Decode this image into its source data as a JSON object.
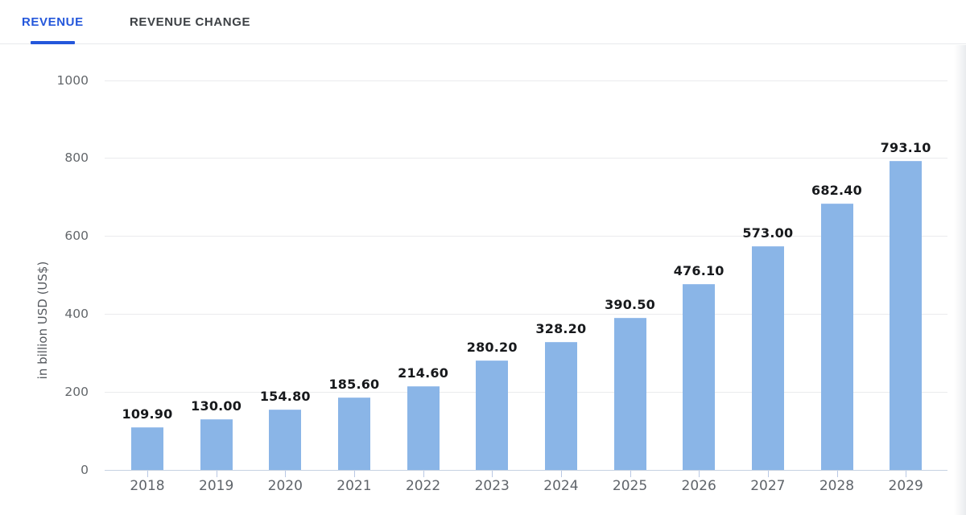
{
  "header": {
    "tabs": [
      {
        "id": "revenue",
        "label": "REVENUE",
        "active": true
      },
      {
        "id": "revenue-change",
        "label": "REVENUE CHANGE",
        "active": false
      }
    ]
  },
  "chart_data": {
    "type": "bar",
    "title": "",
    "ylabel": "in billion USD (US$)",
    "xlabel": "",
    "categories": [
      "2018",
      "2019",
      "2020",
      "2021",
      "2022",
      "2023",
      "2024",
      "2025",
      "2026",
      "2027",
      "2028",
      "2029"
    ],
    "values": [
      109.9,
      130.0,
      154.8,
      185.6,
      214.6,
      280.2,
      328.2,
      390.5,
      476.1,
      573.0,
      682.4,
      793.1
    ],
    "value_labels": [
      "109.90",
      "130.00",
      "154.80",
      "185.60",
      "214.60",
      "280.20",
      "328.20",
      "390.50",
      "476.10",
      "573.00",
      "682.40",
      "793.10"
    ],
    "ylim": [
      0,
      1000
    ],
    "yticks": [
      0,
      200,
      400,
      600,
      800,
      1000
    ],
    "grid": true,
    "legend_position": "none"
  },
  "colors": {
    "accent": "#2457db",
    "tab_inactive_text": "#3d4145",
    "bar_fill": "#8ab5e7",
    "bar_edge": "#9cc0ec",
    "gridline": "#eaebed",
    "axis_line": "#c7d2e2",
    "tick_mark": "#b9c8e4",
    "axis_text": "#63676b",
    "value_text": "#17191c",
    "edge_shadow": "#e9ebee"
  }
}
